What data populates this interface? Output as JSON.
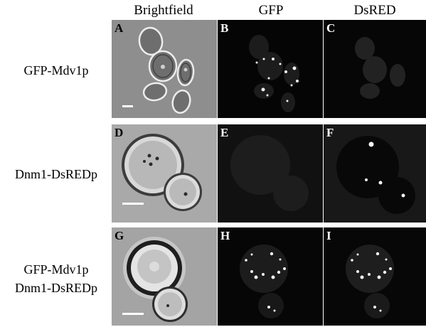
{
  "columns": [
    "Brightfield",
    "GFP",
    "DsRED"
  ],
  "rows": [
    {
      "label_lines": [
        "GFP-Mdv1p"
      ]
    },
    {
      "label_lines": [
        "Dnm1-DsREDp"
      ]
    },
    {
      "label_lines": [
        "GFP-Mdv1p",
        "Dnm1-DsREDp"
      ]
    }
  ],
  "panels": [
    "A",
    "B",
    "C",
    "D",
    "E",
    "F",
    "G",
    "H",
    "I"
  ]
}
